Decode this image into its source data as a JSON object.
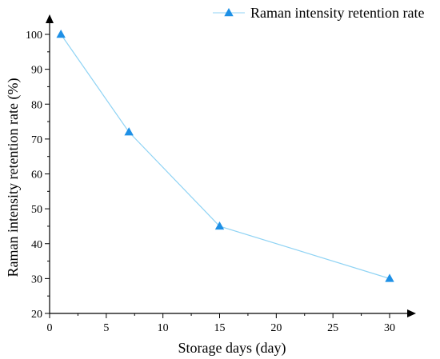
{
  "chart_data": {
    "type": "line",
    "title": "",
    "xlabel": "Storage days (day)",
    "ylabel": "Raman intensity retention rate (%)",
    "xlim": [
      0,
      30
    ],
    "ylim": [
      20,
      100
    ],
    "xticks": [
      0,
      5,
      10,
      15,
      20,
      25,
      30
    ],
    "yticks": [
      20,
      30,
      40,
      50,
      60,
      70,
      80,
      90,
      100
    ],
    "grid": false,
    "legend_position": "top-right",
    "series": [
      {
        "name": "Raman intensity retention rate",
        "color": "#1e90e6",
        "marker": "triangle",
        "x": [
          1,
          7,
          15,
          30
        ],
        "y": [
          100,
          72,
          45,
          30
        ]
      }
    ]
  }
}
